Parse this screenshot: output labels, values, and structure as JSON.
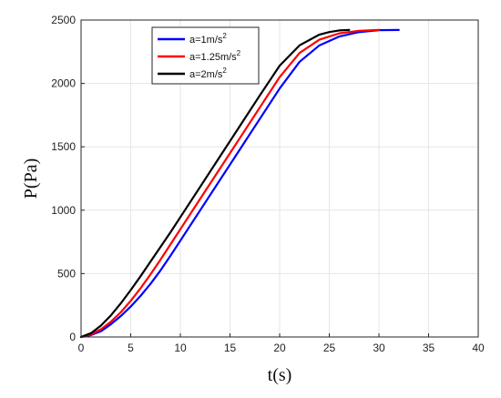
{
  "chart_data": {
    "type": "line",
    "xlabel": "t(s)",
    "ylabel": "P(Pa)",
    "xlim": [
      0,
      40
    ],
    "ylim": [
      0,
      2500
    ],
    "xticks": [
      0,
      5,
      10,
      15,
      20,
      25,
      30,
      35,
      40
    ],
    "yticks": [
      0,
      500,
      1000,
      1500,
      2000,
      2500
    ],
    "grid": true,
    "legend_position": "top-center",
    "series": [
      {
        "name": "a=1m/s",
        "name_superscript": "2",
        "color": "#0000ff",
        "points": [
          [
            0,
            0
          ],
          [
            1,
            15
          ],
          [
            2,
            45
          ],
          [
            3,
            100
          ],
          [
            4,
            165
          ],
          [
            5,
            240
          ],
          [
            6,
            325
          ],
          [
            7,
            420
          ],
          [
            8,
            525
          ],
          [
            9,
            640
          ],
          [
            10,
            760
          ],
          [
            12,
            1000
          ],
          [
            14,
            1240
          ],
          [
            16,
            1480
          ],
          [
            18,
            1720
          ],
          [
            20,
            1960
          ],
          [
            22,
            2170
          ],
          [
            24,
            2300
          ],
          [
            26,
            2370
          ],
          [
            28,
            2405
          ],
          [
            30,
            2420
          ],
          [
            32,
            2422
          ]
        ]
      },
      {
        "name": "a=1.25m/s",
        "name_superscript": "2",
        "color": "#ff0000",
        "points": [
          [
            0,
            0
          ],
          [
            1,
            20
          ],
          [
            2,
            60
          ],
          [
            3,
            120
          ],
          [
            4,
            195
          ],
          [
            5,
            285
          ],
          [
            6,
            385
          ],
          [
            7,
            495
          ],
          [
            8,
            610
          ],
          [
            9,
            730
          ],
          [
            10,
            850
          ],
          [
            12,
            1090
          ],
          [
            14,
            1330
          ],
          [
            16,
            1570
          ],
          [
            18,
            1810
          ],
          [
            20,
            2050
          ],
          [
            22,
            2240
          ],
          [
            24,
            2345
          ],
          [
            26,
            2395
          ],
          [
            28,
            2415
          ],
          [
            30,
            2422
          ]
        ]
      },
      {
        "name": "a=2m/s",
        "name_superscript": "2",
        "color": "#000000",
        "points": [
          [
            0,
            0
          ],
          [
            1,
            30
          ],
          [
            2,
            90
          ],
          [
            3,
            170
          ],
          [
            4,
            265
          ],
          [
            5,
            370
          ],
          [
            6,
            480
          ],
          [
            7,
            595
          ],
          [
            8,
            710
          ],
          [
            9,
            825
          ],
          [
            10,
            945
          ],
          [
            12,
            1185
          ],
          [
            14,
            1425
          ],
          [
            16,
            1665
          ],
          [
            18,
            1905
          ],
          [
            20,
            2140
          ],
          [
            22,
            2300
          ],
          [
            24,
            2385
          ],
          [
            25,
            2405
          ],
          [
            26,
            2418
          ],
          [
            27,
            2422
          ]
        ]
      }
    ]
  }
}
